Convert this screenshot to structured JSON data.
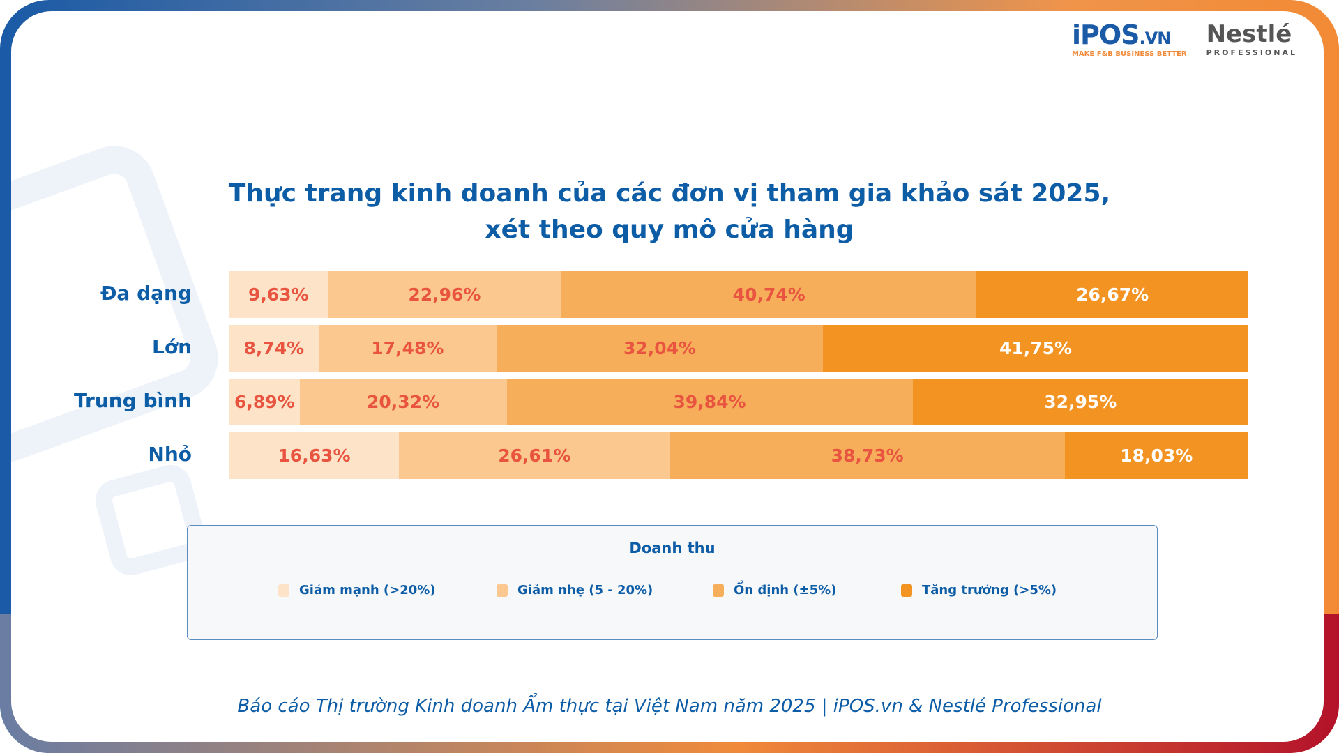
{
  "logos": {
    "ipos": {
      "name": "iPOS",
      "suffix": ".VN",
      "tagline": "MAKE F&B BUSINESS BETTER"
    },
    "nestle": {
      "name": "Nestlé",
      "tagline": "PROFESSIONAL"
    }
  },
  "chart_data": {
    "type": "bar",
    "orientation": "horizontal-stacked-100",
    "title": "Thực trang kinh doanh của các đơn vị tham gia khảo sát 2025,",
    "subtitle": "xét theo quy mô cửa hàng",
    "categories": [
      "Đa dạng",
      "Lớn",
      "Trung bình",
      "Nhỏ"
    ],
    "legend_title": "Doanh thu",
    "legend_placement": "bottom",
    "series": [
      {
        "name": "Giảm mạnh (>20%)",
        "color": "#fde3c8",
        "values": [
          9.63,
          8.74,
          6.89,
          16.63
        ],
        "labels": [
          "9,63%",
          "8,74%",
          "6,89%",
          "16,63%"
        ]
      },
      {
        "name": "Giảm nhẹ (5 - 20%)",
        "color": "#fbc990",
        "values": [
          22.96,
          17.48,
          20.32,
          26.61
        ],
        "labels": [
          "22,96%",
          "17,48%",
          "20,32%",
          "26,61%"
        ]
      },
      {
        "name": "Ổn định (±5%)",
        "color": "#f6ae5a",
        "values": [
          40.74,
          32.04,
          39.84,
          38.73
        ],
        "labels": [
          "40,74%",
          "32,04%",
          "39,84%",
          "38,73%"
        ]
      },
      {
        "name": "Tăng trưởng (>5%)",
        "color": "#f39322",
        "values": [
          26.67,
          41.75,
          32.95,
          18.03
        ],
        "labels": [
          "26,67%",
          "41,75%",
          "32,95%",
          "18,03%"
        ]
      }
    ]
  },
  "footer": "Báo cáo Thị trường Kinh doanh Ẩm thực tại Việt Nam năm 2025 |  iPOS.vn & Nestlé Professional"
}
